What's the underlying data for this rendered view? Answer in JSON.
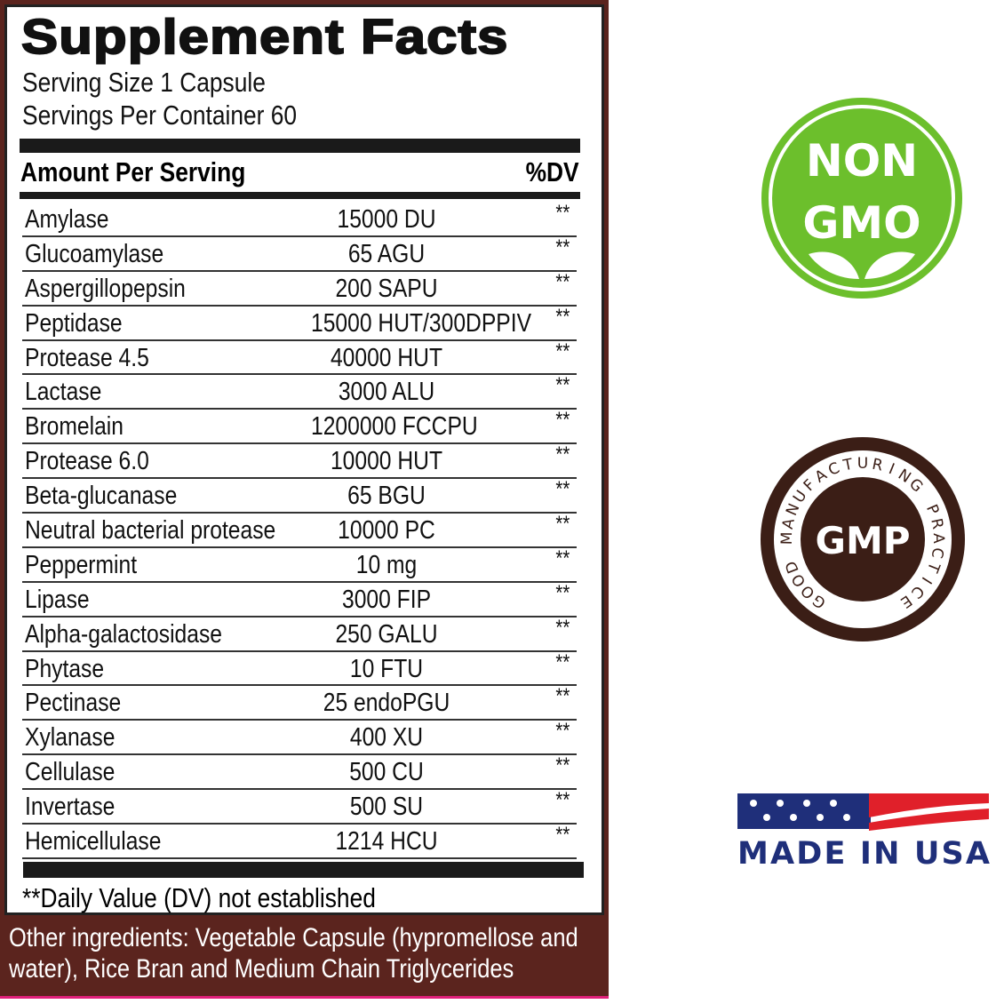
{
  "panel": {
    "title": "Supplement Facts",
    "serving_size": "Serving Size 1 Capsule",
    "servings_per_container": "Servings Per Container 60",
    "amount_header": "Amount Per Serving",
    "dv_header": "%DV",
    "rows": [
      {
        "name": "Amylase",
        "amount": "15000 DU",
        "dv": "**"
      },
      {
        "name": "Glucoamylase",
        "amount": "65 AGU",
        "dv": "**"
      },
      {
        "name": "Aspergillopepsin",
        "amount": "200 SAPU",
        "dv": "**"
      },
      {
        "name": "Peptidase",
        "amount": "15000 HUT/300DPPIV",
        "dv": "**"
      },
      {
        "name": "Protease 4.5",
        "amount": "40000 HUT",
        "dv": "**"
      },
      {
        "name": "Lactase",
        "amount": "3000 ALU",
        "dv": "**"
      },
      {
        "name": "Bromelain",
        "amount": "1200000 FCCPU",
        "dv": "**"
      },
      {
        "name": "Protease 6.0",
        "amount": "10000 HUT",
        "dv": "**"
      },
      {
        "name": "Beta-glucanase",
        "amount": "65 BGU",
        "dv": "**"
      },
      {
        "name": "Neutral bacterial protease",
        "amount": "10000 PC",
        "dv": "**"
      },
      {
        "name": "Peppermint",
        "amount": "10 mg",
        "dv": "**"
      },
      {
        "name": "Lipase",
        "amount": "3000 FIP",
        "dv": "**"
      },
      {
        "name": "Alpha-galactosidase",
        "amount": "250 GALU",
        "dv": "**"
      },
      {
        "name": "Phytase",
        "amount": "10 FTU",
        "dv": "**"
      },
      {
        "name": "Pectinase",
        "amount": "25 endoPGU",
        "dv": "**"
      },
      {
        "name": "Xylanase",
        "amount": "400 XU",
        "dv": "**"
      },
      {
        "name": "Cellulase",
        "amount": "500 CU",
        "dv": "**"
      },
      {
        "name": "Invertase",
        "amount": "500 SU",
        "dv": "**"
      },
      {
        "name": "Hemicellulase",
        "amount": "1214 HCU",
        "dv": "**"
      }
    ],
    "footnote": "**Daily Value (DV) not established",
    "other_ingredients": "Other ingredients: Vegetable Capsule (hypromellose and water), Rice Bran and Medium Chain Triglycerides"
  },
  "badges": {
    "non_gmo": {
      "line1": "NON",
      "line2": "GMO",
      "color": "#6cbf2c"
    },
    "gmp": {
      "center": "GMP",
      "ring": "GOOD MANUFACTURING PRACTICE",
      "color": "#3b1e16"
    },
    "usa": {
      "text": "MADE IN USA",
      "color": "#1f2f7a",
      "red": "#e0202a"
    }
  },
  "colors": {
    "panel_brown": "#5b241e"
  }
}
